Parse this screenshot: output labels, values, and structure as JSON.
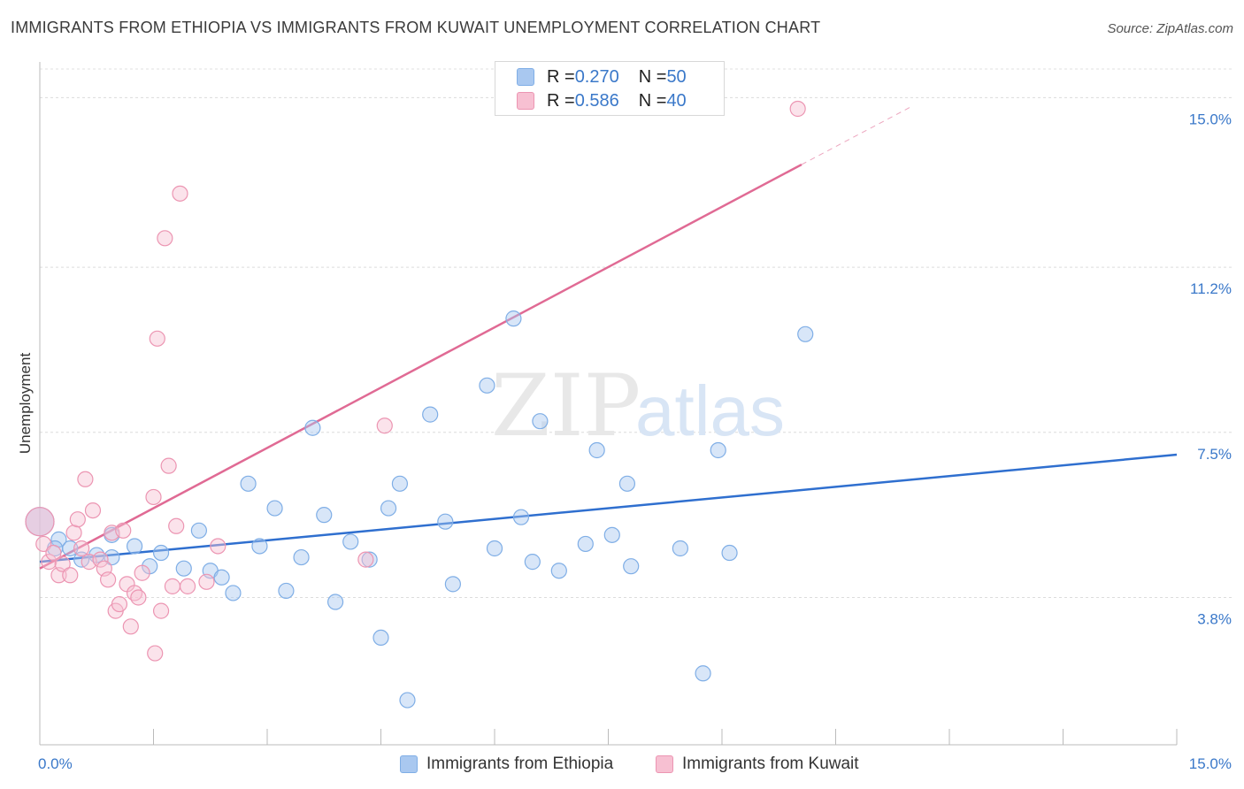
{
  "header": {
    "title": "IMMIGRANTS FROM ETHIOPIA VS IMMIGRANTS FROM KUWAIT UNEMPLOYMENT CORRELATION CHART",
    "source": "Source: ZipAtlas.com"
  },
  "watermark": {
    "zip": "ZIP",
    "atlas": "atlas"
  },
  "legend": {
    "rows": [
      {
        "r_label": "R = ",
        "r_value": "0.270",
        "n_label": "N = ",
        "n_value": "50",
        "color": "#a9c8f0",
        "border": "#7faee6"
      },
      {
        "r_label": "R = ",
        "r_value": "0.586",
        "n_label": "N = ",
        "n_value": "40",
        "color": "#f7c0d2",
        "border": "#ec95b2"
      }
    ]
  },
  "bottom_legend": [
    {
      "label": "Immigrants from Ethiopia",
      "color": "#a9c8f0",
      "border": "#7faee6"
    },
    {
      "label": "Immigrants from Kuwait",
      "color": "#f7c0d2",
      "border": "#ec95b2"
    }
  ],
  "chart_data": {
    "type": "scatter",
    "title": "IMMIGRANTS FROM ETHIOPIA VS IMMIGRANTS FROM KUWAIT UNEMPLOYMENT CORRELATION CHART",
    "xlabel": "",
    "ylabel": "Unemployment",
    "xlim": [
      0,
      15
    ],
    "ylim": [
      0.5,
      15.8
    ],
    "x_tick_labels": [
      "0.0%",
      "15.0%"
    ],
    "y_ticks": [
      3.8,
      7.5,
      11.2,
      15.0
    ],
    "y_tick_labels": [
      "3.8%",
      "7.5%",
      "11.2%",
      "15.0%"
    ],
    "grid": true,
    "series": [
      {
        "name": "Immigrants from Ethiopia",
        "color": "#a9c8f0",
        "stroke": "#7faee6",
        "points": [
          [
            0.0,
            5.5
          ],
          [
            0.25,
            5.1
          ],
          [
            0.4,
            4.9
          ],
          [
            0.55,
            4.65
          ],
          [
            0.75,
            4.75
          ],
          [
            0.95,
            4.7
          ],
          [
            0.95,
            5.2
          ],
          [
            1.25,
            4.95
          ],
          [
            1.45,
            4.5
          ],
          [
            1.6,
            4.8
          ],
          [
            1.9,
            4.45
          ],
          [
            2.1,
            5.3
          ],
          [
            2.25,
            4.4
          ],
          [
            2.4,
            4.25
          ],
          [
            2.55,
            3.9
          ],
          [
            2.75,
            6.35
          ],
          [
            2.9,
            4.95
          ],
          [
            3.1,
            5.8
          ],
          [
            3.25,
            3.95
          ],
          [
            3.45,
            4.7
          ],
          [
            3.6,
            7.6
          ],
          [
            3.75,
            5.65
          ],
          [
            3.9,
            3.7
          ],
          [
            4.1,
            5.05
          ],
          [
            4.35,
            4.65
          ],
          [
            4.5,
            2.9
          ],
          [
            4.6,
            5.8
          ],
          [
            4.75,
            6.35
          ],
          [
            4.85,
            1.5
          ],
          [
            5.15,
            7.9
          ],
          [
            5.35,
            5.5
          ],
          [
            5.45,
            4.1
          ],
          [
            5.9,
            8.55
          ],
          [
            6.0,
            4.9
          ],
          [
            6.25,
            10.05
          ],
          [
            6.35,
            5.6
          ],
          [
            6.5,
            4.6
          ],
          [
            6.6,
            7.75
          ],
          [
            6.85,
            4.4
          ],
          [
            7.2,
            5.0
          ],
          [
            7.35,
            7.1
          ],
          [
            7.55,
            5.2
          ],
          [
            7.75,
            6.35
          ],
          [
            7.8,
            4.5
          ],
          [
            8.45,
            4.9
          ],
          [
            8.75,
            2.1
          ],
          [
            8.95,
            7.1
          ],
          [
            9.1,
            4.8
          ],
          [
            10.1,
            9.7
          ],
          [
            0.2,
            4.9
          ]
        ]
      },
      {
        "name": "Immigrants from Kuwait",
        "color": "#f7c0d2",
        "stroke": "#ec95b2",
        "points": [
          [
            0.0,
            5.5
          ],
          [
            0.05,
            5.0
          ],
          [
            0.12,
            4.6
          ],
          [
            0.18,
            4.8
          ],
          [
            0.25,
            4.3
          ],
          [
            0.3,
            4.55
          ],
          [
            0.4,
            4.3
          ],
          [
            0.45,
            5.25
          ],
          [
            0.5,
            5.55
          ],
          [
            0.55,
            4.9
          ],
          [
            0.6,
            6.45
          ],
          [
            0.65,
            4.6
          ],
          [
            0.7,
            5.75
          ],
          [
            0.8,
            4.65
          ],
          [
            0.85,
            4.45
          ],
          [
            0.9,
            4.2
          ],
          [
            0.95,
            5.25
          ],
          [
            1.0,
            3.5
          ],
          [
            1.05,
            3.65
          ],
          [
            1.1,
            5.3
          ],
          [
            1.15,
            4.1
          ],
          [
            1.2,
            3.15
          ],
          [
            1.25,
            3.9
          ],
          [
            1.3,
            3.8
          ],
          [
            1.35,
            4.35
          ],
          [
            1.5,
            6.05
          ],
          [
            1.52,
            2.55
          ],
          [
            1.55,
            9.6
          ],
          [
            1.6,
            3.5
          ],
          [
            1.65,
            11.85
          ],
          [
            1.7,
            6.75
          ],
          [
            1.75,
            4.05
          ],
          [
            1.8,
            5.4
          ],
          [
            1.85,
            12.85
          ],
          [
            1.95,
            4.05
          ],
          [
            2.2,
            4.15
          ],
          [
            2.35,
            4.95
          ],
          [
            4.3,
            4.65
          ],
          [
            4.55,
            7.65
          ],
          [
            10.0,
            14.75
          ]
        ]
      }
    ],
    "trendlines": [
      {
        "series": "Immigrants from Ethiopia",
        "color": "#2f6fcf",
        "x": [
          0,
          15
        ],
        "y": [
          4.6,
          7.0
        ]
      },
      {
        "series": "Immigrants from Kuwait",
        "color": "#e06a94",
        "x": [
          0,
          10.05
        ],
        "y": [
          4.45,
          13.5
        ],
        "dashed_extension": {
          "x": [
            10.05,
            11.5
          ],
          "y": [
            13.5,
            14.8
          ]
        }
      }
    ]
  }
}
